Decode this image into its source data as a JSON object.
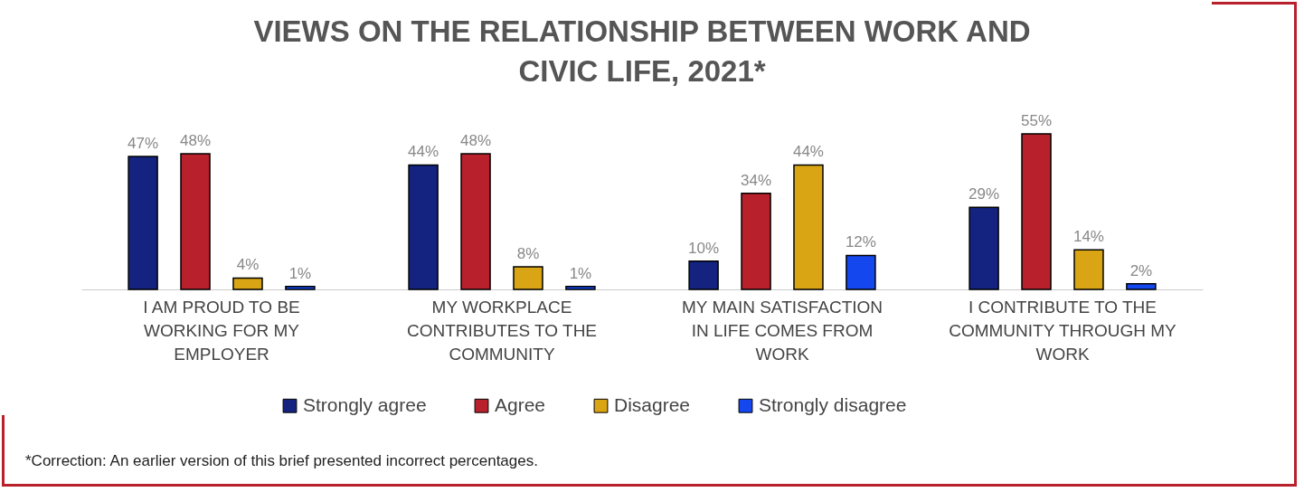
{
  "chart_data": {
    "type": "bar",
    "title": "VIEWS ON THE RELATIONSHIP BETWEEN WORK AND CIVIC LIFE, 2021*",
    "categories": [
      "I AM PROUD TO BE WORKING FOR MY EMPLOYER",
      "MY WORKPLACE CONTRIBUTES TO THE COMMUNITY",
      "MY MAIN SATISFACTION IN LIFE COMES FROM WORK",
      "I CONTRIBUTE TO THE COMMUNITY THROUGH MY WORK"
    ],
    "series": [
      {
        "name": "Strongly agree",
        "color": "#13237f",
        "values": [
          47,
          44,
          10,
          29
        ],
        "value_labels": [
          "47%",
          "44%",
          "10%",
          "29%"
        ]
      },
      {
        "name": "Agree",
        "color": "#b8202b",
        "values": [
          48,
          48,
          34,
          55
        ],
        "value_labels": [
          "48%",
          "48%",
          "34%",
          "55%"
        ]
      },
      {
        "name": "Disagree",
        "color": "#d9a514",
        "values": [
          4,
          8,
          44,
          14
        ],
        "value_labels": [
          "4%",
          "8%",
          "44%",
          "14%"
        ]
      },
      {
        "name": "Strongly disagree",
        "color": "#1448ee",
        "values": [
          1,
          1,
          12,
          2
        ],
        "value_labels": [
          "1%",
          "1%",
          "12%",
          "2%"
        ]
      }
    ],
    "tick_labels": "x",
    "legend": "bottom",
    "grid": false,
    "annotations": [
      "*Correction: An earlier version of this brief presented incorrect percentages."
    ]
  }
}
